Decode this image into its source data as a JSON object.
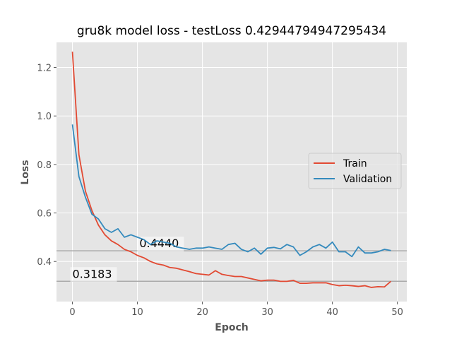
{
  "chart_data": {
    "type": "line",
    "title": "gru8k model loss - testLoss 0.42944794947295434",
    "xlabel": "Epoch",
    "ylabel": "Loss",
    "xlim": [
      -2.45,
      51.45
    ],
    "ylim": [
      0.2346,
      1.3035
    ],
    "xticks": [
      0,
      10,
      20,
      30,
      40,
      50
    ],
    "xtick_labels": [
      "0",
      "10",
      "20",
      "30",
      "40",
      "50"
    ],
    "yticks": [
      0.4,
      0.6,
      0.8,
      1.0,
      1.2
    ],
    "ytick_labels": [
      "0.4",
      "0.6",
      "0.8",
      "1.0",
      "1.2"
    ],
    "grid": true,
    "legend_position": "center-right",
    "x": [
      0,
      1,
      2,
      3,
      4,
      5,
      6,
      7,
      8,
      9,
      10,
      11,
      12,
      13,
      14,
      15,
      16,
      17,
      18,
      19,
      20,
      21,
      22,
      23,
      24,
      25,
      26,
      27,
      28,
      29,
      30,
      31,
      32,
      33,
      34,
      35,
      36,
      37,
      38,
      39,
      40,
      41,
      42,
      43,
      44,
      45,
      46,
      47,
      48,
      49
    ],
    "series": [
      {
        "name": "Train",
        "color": "#e24a33",
        "values": [
          1.265,
          0.84,
          0.69,
          0.61,
          0.55,
          0.51,
          0.485,
          0.47,
          0.45,
          0.44,
          0.425,
          0.415,
          0.4,
          0.39,
          0.385,
          0.375,
          0.372,
          0.365,
          0.358,
          0.35,
          0.347,
          0.344,
          0.362,
          0.347,
          0.342,
          0.338,
          0.338,
          0.332,
          0.326,
          0.32,
          0.323,
          0.323,
          0.318,
          0.318,
          0.322,
          0.31,
          0.31,
          0.312,
          0.312,
          0.312,
          0.305,
          0.3,
          0.302,
          0.3,
          0.297,
          0.3,
          0.293,
          0.296,
          0.295,
          0.318
        ]
      },
      {
        "name": "Validation",
        "color": "#348abd",
        "values": [
          0.965,
          0.75,
          0.665,
          0.595,
          0.575,
          0.535,
          0.52,
          0.535,
          0.5,
          0.51,
          0.5,
          0.49,
          0.47,
          0.485,
          0.48,
          0.475,
          0.46,
          0.455,
          0.45,
          0.455,
          0.455,
          0.46,
          0.455,
          0.45,
          0.47,
          0.475,
          0.45,
          0.44,
          0.455,
          0.43,
          0.455,
          0.458,
          0.452,
          0.47,
          0.46,
          0.425,
          0.44,
          0.46,
          0.47,
          0.455,
          0.48,
          0.44,
          0.44,
          0.42,
          0.46,
          0.435,
          0.435,
          0.44,
          0.45,
          0.445
        ]
      }
    ],
    "hlines": [
      {
        "value": 0.444,
        "label": "0.4440",
        "color": "#aaaaaa"
      },
      {
        "value": 0.3183,
        "label": "0.3183",
        "color": "#aaaaaa"
      }
    ]
  }
}
